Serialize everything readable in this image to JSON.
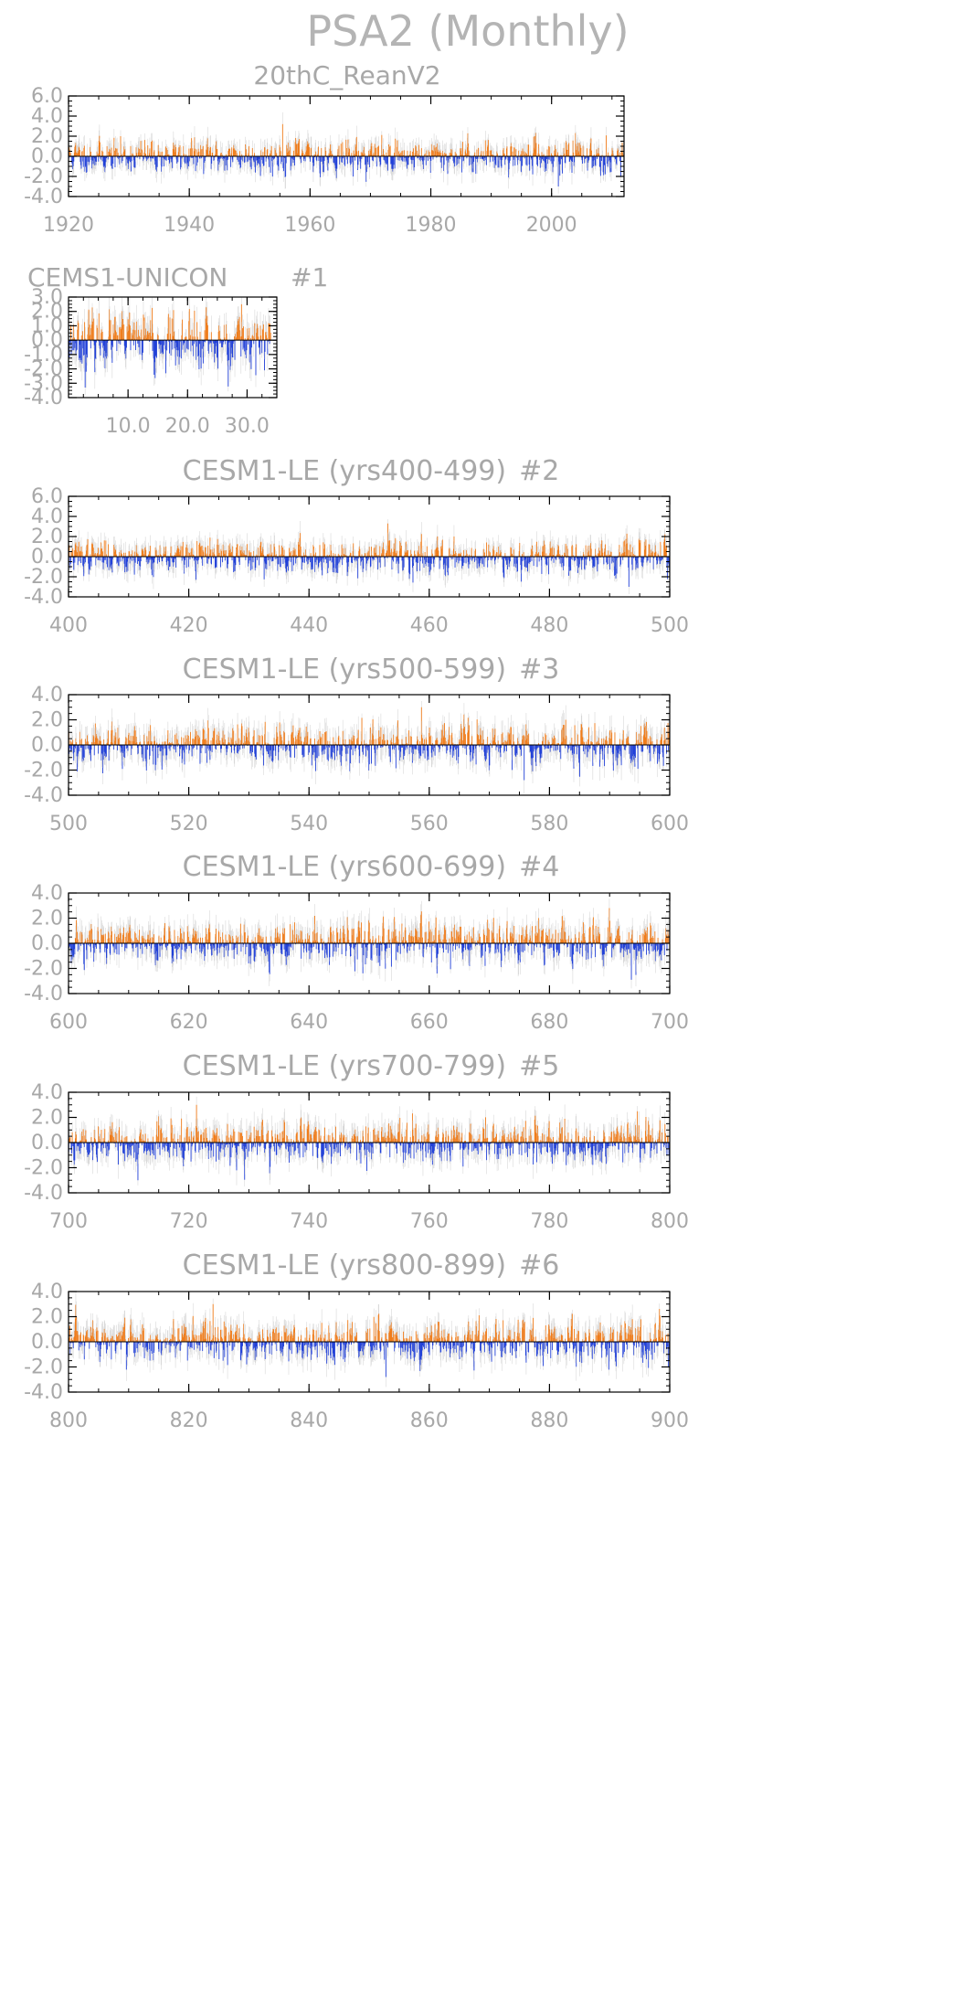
{
  "figure": {
    "title": "PSA2 (Monthly)"
  },
  "colors": {
    "positive": "#f07c1a",
    "negative": "#2140d8",
    "axis": "#000000",
    "text": "#a8a8a8",
    "gray_bar": "#d8d8d8"
  },
  "chart_data": [
    {
      "type": "bar",
      "title": "20thC_ReanV2",
      "label": "",
      "x_range": [
        1920,
        2012
      ],
      "x_ticks": [
        "1920",
        "1940",
        "1960",
        "1980",
        "2000"
      ],
      "x_tick_values": [
        1920,
        1940,
        1960,
        1980,
        2000
      ],
      "ylim": [
        -4.0,
        6.0
      ],
      "y_ticks": [
        "6.0",
        "4.0",
        "2.0",
        "0.0",
        "-2.0",
        "-4.0"
      ],
      "y_tick_values": [
        6,
        4,
        2,
        0,
        -2,
        -4
      ],
      "monthly_series": {
        "start": 1920,
        "months": 1104,
        "seed": 11,
        "amplitude": 1.0,
        "peak_max": 3.2,
        "peak_min": -3.0
      }
    },
    {
      "type": "bar",
      "title": "CEMS1-UNICON",
      "label": "#1",
      "x_range": [
        0,
        35
      ],
      "x_ticks": [
        "10.0",
        "20.0",
        "30.0"
      ],
      "x_tick_values": [
        10,
        20,
        30
      ],
      "ylim": [
        -4.0,
        3.0
      ],
      "y_ticks": [
        "3.0",
        "2.0",
        "1.0",
        "0.0",
        "-1.0",
        "-2.0",
        "-3.0",
        "-4.0"
      ],
      "y_tick_values": [
        3,
        2,
        1,
        0,
        -1,
        -2,
        -3,
        -4
      ],
      "monthly_series": {
        "start": 1,
        "months": 396,
        "seed": 23,
        "amplitude": 1.1,
        "peak_max": 2.5,
        "peak_min": -3.3
      }
    },
    {
      "type": "bar",
      "title": "CESM1-LE (yrs400-499)",
      "label": "#2",
      "x_range": [
        400,
        500
      ],
      "x_ticks": [
        "400",
        "420",
        "440",
        "460",
        "480",
        "500"
      ],
      "x_tick_values": [
        400,
        420,
        440,
        460,
        480,
        500
      ],
      "ylim": [
        -4.0,
        6.0
      ],
      "y_ticks": [
        "6.0",
        "4.0",
        "2.0",
        "0.0",
        "-2.0",
        "-4.0"
      ],
      "y_tick_values": [
        6,
        4,
        2,
        0,
        -2,
        -4
      ],
      "monthly_series": {
        "start": 400,
        "months": 1200,
        "seed": 37,
        "amplitude": 1.0,
        "peak_max": 3.3,
        "peak_min": -3.0
      }
    },
    {
      "type": "bar",
      "title": "CESM1-LE (yrs500-599)",
      "label": "#3",
      "x_range": [
        500,
        600
      ],
      "x_ticks": [
        "500",
        "520",
        "540",
        "560",
        "580",
        "600"
      ],
      "x_tick_values": [
        500,
        520,
        540,
        560,
        580,
        600
      ],
      "ylim": [
        -4.0,
        4.0
      ],
      "y_ticks": [
        "4.0",
        "2.0",
        "0.0",
        "-2.0",
        "-4.0"
      ],
      "y_tick_values": [
        4,
        2,
        0,
        -2,
        -4
      ],
      "monthly_series": {
        "start": 500,
        "months": 1200,
        "seed": 53,
        "amplitude": 1.0,
        "peak_max": 3.0,
        "peak_min": -2.8
      }
    },
    {
      "type": "bar",
      "title": "CESM1-LE (yrs600-699)",
      "label": "#4",
      "x_range": [
        600,
        700
      ],
      "x_ticks": [
        "600",
        "620",
        "640",
        "660",
        "680",
        "700"
      ],
      "x_tick_values": [
        600,
        620,
        640,
        660,
        680,
        700
      ],
      "ylim": [
        -4.0,
        4.0
      ],
      "y_ticks": [
        "4.0",
        "2.0",
        "0.0",
        "-2.0",
        "-4.0"
      ],
      "y_tick_values": [
        4,
        2,
        0,
        -2,
        -4
      ],
      "monthly_series": {
        "start": 600,
        "months": 1200,
        "seed": 71,
        "amplitude": 1.0,
        "peak_max": 2.8,
        "peak_min": -2.9
      }
    },
    {
      "type": "bar",
      "title": "CESM1-LE (yrs700-799)",
      "label": "#5",
      "x_range": [
        700,
        800
      ],
      "x_ticks": [
        "700",
        "720",
        "740",
        "760",
        "780",
        "800"
      ],
      "x_tick_values": [
        700,
        720,
        740,
        760,
        780,
        800
      ],
      "ylim": [
        -4.0,
        4.0
      ],
      "y_ticks": [
        "4.0",
        "2.0",
        "0.0",
        "-2.0",
        "-4.0"
      ],
      "y_tick_values": [
        4,
        2,
        0,
        -2,
        -4
      ],
      "monthly_series": {
        "start": 700,
        "months": 1200,
        "seed": 89,
        "amplitude": 1.0,
        "peak_max": 3.0,
        "peak_min": -3.0
      }
    },
    {
      "type": "bar",
      "title": "CESM1-LE (yrs800-899)",
      "label": "#6",
      "x_range": [
        800,
        900
      ],
      "x_ticks": [
        "800",
        "820",
        "840",
        "860",
        "880",
        "900"
      ],
      "x_tick_values": [
        800,
        820,
        840,
        860,
        880,
        900
      ],
      "ylim": [
        -4.0,
        4.0
      ],
      "y_ticks": [
        "4.0",
        "2.0",
        "0.0",
        "-2.0",
        "-4.0"
      ],
      "y_tick_values": [
        4,
        2,
        0,
        -2,
        -4
      ],
      "monthly_series": {
        "start": 800,
        "months": 1200,
        "seed": 97,
        "amplitude": 1.0,
        "peak_max": 3.0,
        "peak_min": -2.8
      }
    }
  ]
}
